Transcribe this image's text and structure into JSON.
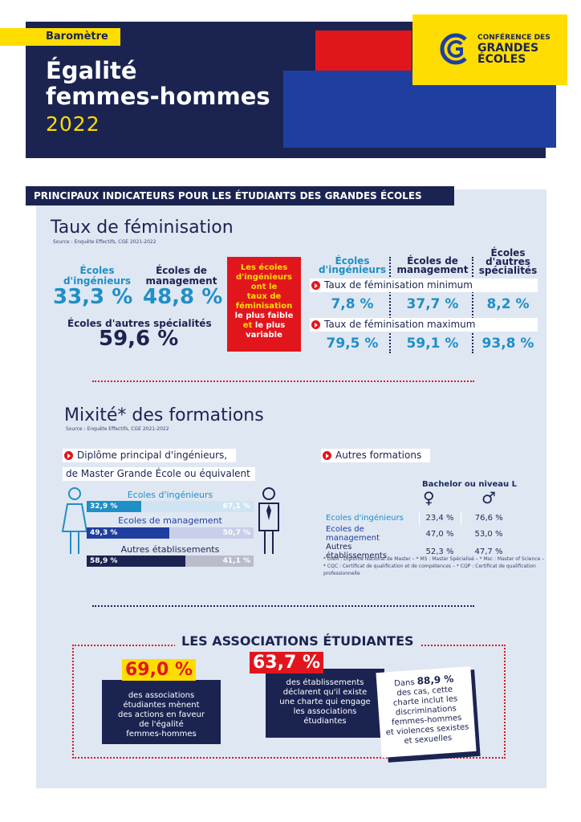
{
  "header": {
    "tag": "Baromètre",
    "title_line1": "Égalité",
    "title_line2": "femmes-hommes",
    "year": "2022",
    "logo_line1": "CONFÉRENCE DES",
    "logo_line2": "GRANDES",
    "logo_line3": "ÉCOLES"
  },
  "band_title": "PRINCIPAUX INDICATEURS POUR LES ÉTUDIANTS DES GRANDES ÉCOLES",
  "feminisation": {
    "title": "Taux de féminisation",
    "source": "Source : Enquête Effectifs, CGE 2021-2022",
    "ing_label_1": "Écoles",
    "ing_label_2": "d'ingénieurs",
    "ing_value": "33,3 %",
    "mgmt_label_1": "Écoles de",
    "mgmt_label_2": "management",
    "mgmt_value": "48,8 %",
    "autres_label": "Écoles d'autres spécialités",
    "autres_value": "59,6 %",
    "red_box": [
      "Les écoles",
      "d'ingénieurs",
      "ont le",
      "taux de",
      "féminisation",
      "le plus faible",
      "et",
      "le plus",
      "variable"
    ],
    "col_headers": [
      [
        "Écoles",
        "d'ingénieurs"
      ],
      [
        "Écoles de",
        "management"
      ],
      [
        "Écoles",
        "d'autres",
        "spécialités"
      ]
    ],
    "min_label": "Taux de féminisation minimum",
    "min_values": [
      "7,8 %",
      "37,7 %",
      "8,2 %"
    ],
    "max_label": "Taux de féminisation maximum",
    "max_values": [
      "79,5 %",
      "59,1 %",
      "93,8 %"
    ]
  },
  "mixite": {
    "title": "Mixité* des formations",
    "source": "Source : Enquête Effectifs, CGE 2021-2022",
    "left_label_1": "Diplôme principal d'ingénieurs,",
    "left_label_2": "de Master Grande École ou équivalent",
    "bars": [
      {
        "label": "Ecoles d'ingénieurs",
        "women": "32,9 %",
        "men": "67,1 %",
        "women_share": 0.329,
        "women_color": "#1f8fc6",
        "men_color": "#cfe4f3"
      },
      {
        "label": "Ecoles de management",
        "women": "49,3 %",
        "men": "50,7 %",
        "women_share": 0.493,
        "women_color": "#1f3fa0",
        "men_color": "#c9cfe8"
      },
      {
        "label": "Autres établissements",
        "women": "58,9 %",
        "men": "41,1 %",
        "women_share": 0.589,
        "women_color": "#1b2451",
        "men_color": "#b9bccb"
      }
    ],
    "right_label": "Autres formations",
    "table_header": "Bachelor ou niveau L",
    "rows": [
      {
        "label": "Ecoles d'ingénieurs",
        "f": "23,4 %",
        "m": "76,6 %"
      },
      {
        "label": "Ecoles de management",
        "f": "47,0 %",
        "m": "53,0 %"
      },
      {
        "label": "Autres établissements",
        "f": "52,3 %",
        "m": "47,7 %"
      }
    ],
    "footnote": "* DNM : Diplôme National de Master – * MS : Master Spécialisé – * Msc : Master of Science – * CQC : Certificat de qualification et de compétences – * CQP : Certificat de qualification professionnelle"
  },
  "associations": {
    "title": "LES ASSOCIATIONS ÉTUDIANTES",
    "stat1_value": "69,0 %",
    "stat1_text": [
      "des associations",
      "étudiantes mènent",
      "des actions en faveur",
      "de l'égalité",
      "femmes-hommes"
    ],
    "stat2_value": "63,7 %",
    "stat2_text": [
      "des établissements",
      "déclarent qu'il existe",
      "une charte qui engage",
      "les associations",
      "étudiantes"
    ],
    "stat3_prefix": "Dans",
    "stat3_value": "88,9 %",
    "stat3_text": [
      "des cas, cette",
      "charte inclut les",
      "discriminations",
      "femmes-hommes",
      "et violences sexistes",
      "et sexuelles"
    ]
  },
  "colors": {
    "navy": "#1b2451",
    "blue": "#1f8fc6",
    "red": "#e1161d",
    "yellow": "#ffdd00",
    "panel": "#dfe7f3"
  }
}
